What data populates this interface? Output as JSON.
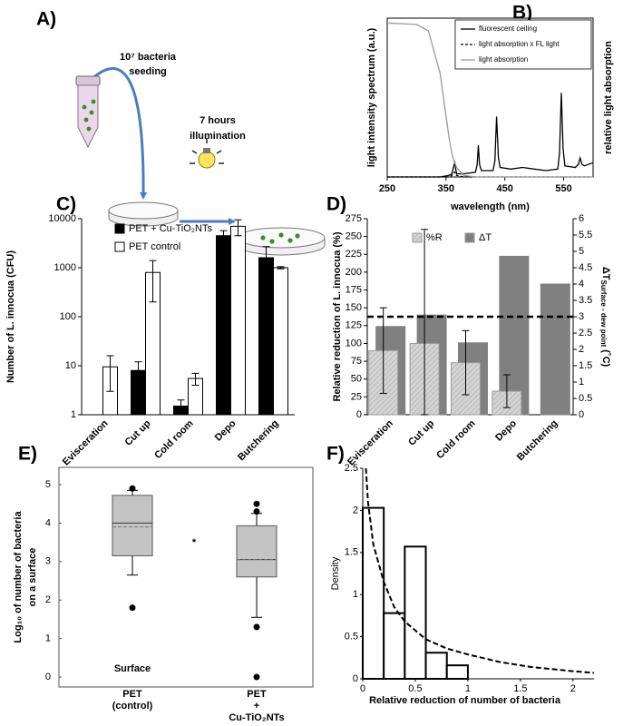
{
  "diagram": {
    "panel_label": "A)",
    "labels": [
      "10⁷ bacteria",
      "seeding",
      "7 hours",
      "illumination"
    ]
  },
  "chart_data": [
    {
      "type": "line",
      "panel_label": "B)",
      "xlabel": "wavelength (nm)",
      "ylabel": "light intensity spectrum (a.u.)",
      "y2label": "relative light absorption",
      "xlim": [
        250,
        600
      ],
      "xticks": [
        250,
        350,
        450,
        550
      ],
      "ylim": [
        0,
        1
      ],
      "y2lim": [
        0,
        1
      ],
      "legend": "upper right",
      "x": [
        250,
        300,
        320,
        340,
        355,
        360,
        362,
        364,
        365,
        366,
        368,
        380,
        400,
        403,
        405,
        407,
        410,
        430,
        433,
        436,
        439,
        442,
        460,
        480,
        500,
        520,
        540,
        543,
        546,
        549,
        552,
        570,
        575,
        578,
        581,
        585,
        600
      ],
      "series": [
        {
          "name": "fluorescent ceiling",
          "color": "#000000",
          "linestyle": "solid",
          "values": [
            0,
            0,
            0,
            0,
            0.01,
            0.02,
            0.05,
            0.08,
            0.09,
            0.06,
            0.02,
            0.02,
            0.03,
            0.08,
            0.2,
            0.08,
            0.04,
            0.04,
            0.1,
            0.38,
            0.12,
            0.06,
            0.05,
            0.06,
            0.05,
            0.04,
            0.05,
            0.15,
            0.53,
            0.18,
            0.07,
            0.06,
            0.08,
            0.12,
            0.08,
            0.07,
            0.09
          ]
        },
        {
          "name": "light absorption x FL light",
          "color": "#000000",
          "linestyle": "dashed",
          "values": [
            0,
            0,
            0,
            0,
            0,
            0.01,
            0.02,
            0.03,
            0.03,
            0.02,
            0.01,
            0,
            0,
            0,
            0,
            0,
            0,
            0,
            0,
            0,
            0,
            0,
            0,
            0,
            0,
            0,
            0,
            0,
            0,
            0,
            0,
            0,
            0,
            0,
            0,
            0,
            0
          ]
        },
        {
          "name": "light absorption",
          "color": "#9a9a9a",
          "linestyle": "solid",
          "axis": "y2",
          "values": [
            0.97,
            0.96,
            0.92,
            0.65,
            0.25,
            0.15,
            0.12,
            0.1,
            0.09,
            0.08,
            0.06,
            0.01,
            0,
            0,
            0,
            0,
            0,
            0,
            0,
            0,
            0,
            0,
            0,
            0,
            0,
            0,
            0,
            0,
            0,
            0,
            0,
            0,
            0,
            0,
            0,
            0,
            0
          ]
        }
      ]
    },
    {
      "type": "bar",
      "panel_label": "C)",
      "ylabel": "Number of L. innocua (CFU)",
      "log_y": true,
      "categories": [
        "Evisceration",
        "Cut up",
        "Cold room",
        "Depo",
        "Butchering"
      ],
      "ylim": [
        1,
        10000
      ],
      "yticks": [
        1,
        10,
        100,
        1000,
        10000
      ],
      "legend": "upper left",
      "series": [
        {
          "name": "PET + Cu-TiO₂NTs",
          "color": "#000000",
          "values": [
            null,
            8,
            1.5,
            4500,
            1600
          ],
          "errors": [
            null,
            4,
            0.5,
            1200,
            1100
          ]
        },
        {
          "name": "PET control",
          "color": "#ffffff",
          "values": [
            9.5,
            800,
            5.5,
            7000,
            1000
          ],
          "errors": [
            6.5,
            600,
            1.5,
            2500,
            50
          ]
        }
      ]
    },
    {
      "type": "bar",
      "panel_label": "D)",
      "ylabel": "Relative reduction of L. innocua (%)",
      "y2label": "ΔT",
      "y2label_sub": "Surface - dew point",
      "y2label_unit": "(˚C)",
      "categories": [
        "Evisceration",
        "Cut up",
        "Cold room",
        "Depo",
        "Butchering"
      ],
      "ylim": [
        0,
        275
      ],
      "yticks": [
        0,
        25,
        50,
        75,
        100,
        125,
        150,
        175,
        200,
        225,
        250,
        275
      ],
      "y2lim": [
        0,
        6
      ],
      "y2ticks": [
        0,
        0.5,
        1,
        1.5,
        2,
        2.5,
        3,
        3.5,
        4,
        4.5,
        5,
        5.5,
        6
      ],
      "reference_line": 3,
      "reference_axis": "y2",
      "legend": "upper left",
      "series": [
        {
          "name": "%R",
          "color": "#cfcfcf",
          "values": [
            90,
            100,
            73,
            33,
            null
          ],
          "errors": [
            60,
            160,
            45,
            23,
            null
          ]
        },
        {
          "name": "ΔT",
          "color": "#808080",
          "axis": "y2",
          "values": [
            2.7,
            3.05,
            2.2,
            4.85,
            4.0
          ]
        }
      ]
    },
    {
      "type": "box",
      "panel_label": "E)",
      "ylabel": [
        "Log₁₀ of number of bacteria",
        "on a surface"
      ],
      "categories": [
        [
          "PET",
          "(control)"
        ],
        [
          "PET",
          "+",
          "Cu-TiO₂NTs"
        ]
      ],
      "ylim": [
        0,
        5
      ],
      "yticks": [
        0,
        1,
        2,
        3,
        4,
        5
      ],
      "color": "#c4c4c4",
      "annotations": [
        "*",
        "Surface"
      ],
      "boxes": [
        {
          "whislo": 2.65,
          "q1": 3.15,
          "med": 4.0,
          "mean": 3.9,
          "q3": 4.72,
          "whishi": 4.85,
          "fliers": [
            4.9,
            1.8
          ]
        },
        {
          "whislo": 1.55,
          "q1": 2.6,
          "med": 3.05,
          "mean": 3.05,
          "q3": 3.93,
          "whishi": 4.25,
          "fliers": [
            4.5,
            4.3,
            1.3,
            0
          ]
        }
      ]
    },
    {
      "type": "histogram",
      "panel_label": "F)",
      "xlabel": "Relative reduction of number of bacteria",
      "ylabel": "Density",
      "bins": [
        0,
        0.2,
        0.4,
        0.6,
        0.8,
        1.0
      ],
      "values": [
        2.03,
        0.78,
        1.57,
        0.31,
        0.16
      ],
      "xlim": [
        0,
        2.2
      ],
      "xticks": [
        0,
        0.5,
        1,
        1.5,
        2
      ],
      "ylim": [
        0,
        2.5
      ],
      "yticks": [
        0,
        0.5,
        1,
        1.5,
        2,
        2.5
      ],
      "fit": {
        "x": [
          0.03,
          0.05,
          0.1,
          0.2,
          0.3,
          0.4,
          0.6,
          0.8,
          1.0,
          1.3,
          1.6,
          2.0,
          2.2
        ],
        "values": [
          2.5,
          2.1,
          1.6,
          1.15,
          0.85,
          0.68,
          0.47,
          0.36,
          0.29,
          0.2,
          0.14,
          0.09,
          0.07
        ]
      }
    }
  ]
}
